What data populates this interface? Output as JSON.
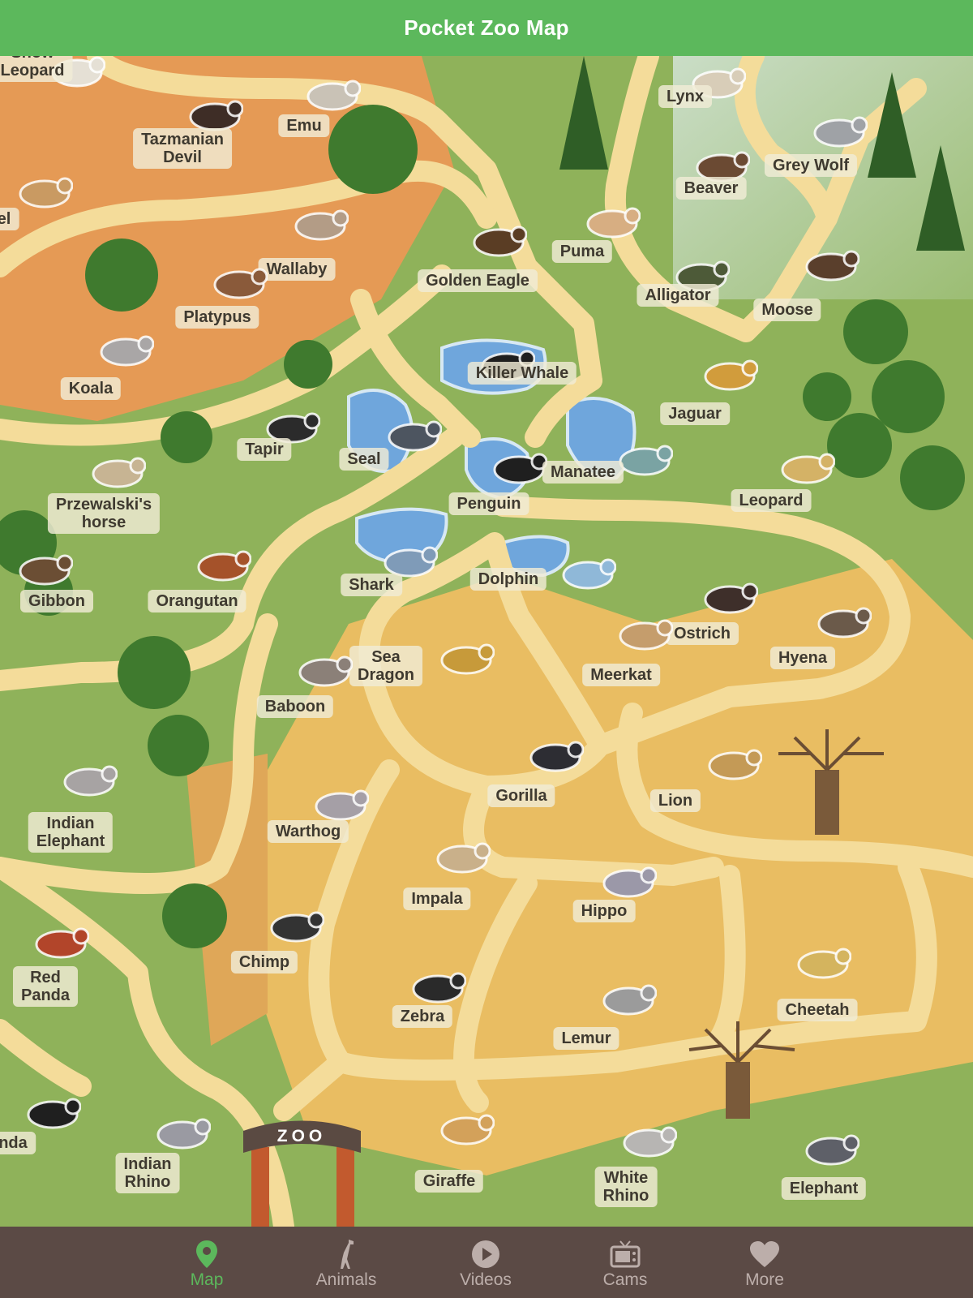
{
  "header": {
    "title": "Pocket Zoo Map"
  },
  "map": {
    "animals": [
      {
        "name": "Snow\nLeopard",
        "icon": "snow-leopard-icon"
      },
      {
        "name": "Emu",
        "icon": "emu-icon"
      },
      {
        "name": "Tazmanian\nDevil",
        "icon": "tasmanian-devil-icon"
      },
      {
        "name": "el",
        "icon": "camel-icon"
      },
      {
        "name": "Lynx",
        "icon": "lynx-icon"
      },
      {
        "name": "Grey Wolf",
        "icon": "grey-wolf-icon"
      },
      {
        "name": "Beaver",
        "icon": "beaver-icon"
      },
      {
        "name": "Wallaby",
        "icon": "wallaby-icon"
      },
      {
        "name": "Puma",
        "icon": "puma-icon"
      },
      {
        "name": "Golden Eagle",
        "icon": "golden-eagle-icon"
      },
      {
        "name": "Alligator",
        "icon": "alligator-icon"
      },
      {
        "name": "Moose",
        "icon": "moose-icon"
      },
      {
        "name": "Platypus",
        "icon": "platypus-icon"
      },
      {
        "name": "Koala",
        "icon": "koala-icon"
      },
      {
        "name": "Killer Whale",
        "icon": "killer-whale-icon"
      },
      {
        "name": "Jaguar",
        "icon": "jaguar-icon"
      },
      {
        "name": "Tapir",
        "icon": "tapir-icon"
      },
      {
        "name": "Seal",
        "icon": "seal-icon"
      },
      {
        "name": "Penguin",
        "icon": "penguin-icon"
      },
      {
        "name": "Manatee",
        "icon": "manatee-icon"
      },
      {
        "name": "Leopard",
        "icon": "leopard-icon"
      },
      {
        "name": "Przewalski's\nhorse",
        "icon": "przewalski-horse-icon"
      },
      {
        "name": "Shark",
        "icon": "shark-icon"
      },
      {
        "name": "Dolphin",
        "icon": "dolphin-icon"
      },
      {
        "name": "Gibbon",
        "icon": "gibbon-icon"
      },
      {
        "name": "Orangutan",
        "icon": "orangutan-icon"
      },
      {
        "name": "Ostrich",
        "icon": "ostrich-icon"
      },
      {
        "name": "Hyena",
        "icon": "hyena-icon"
      },
      {
        "name": "Sea\nDragon",
        "icon": "sea-dragon-icon"
      },
      {
        "name": "Meerkat",
        "icon": "meerkat-icon"
      },
      {
        "name": "Baboon",
        "icon": "baboon-icon"
      },
      {
        "name": "Gorilla",
        "icon": "gorilla-icon"
      },
      {
        "name": "Lion",
        "icon": "lion-icon"
      },
      {
        "name": "Indian\nElephant",
        "icon": "indian-elephant-icon"
      },
      {
        "name": "Warthog",
        "icon": "warthog-icon"
      },
      {
        "name": "Impala",
        "icon": "impala-icon"
      },
      {
        "name": "Hippo",
        "icon": "hippo-icon"
      },
      {
        "name": "Chimp",
        "icon": "chimp-icon"
      },
      {
        "name": "Red\nPanda",
        "icon": "red-panda-icon"
      },
      {
        "name": "Zebra",
        "icon": "zebra-icon"
      },
      {
        "name": "Lemur",
        "icon": "lemur-icon"
      },
      {
        "name": "Cheetah",
        "icon": "cheetah-icon"
      },
      {
        "name": "nda",
        "icon": "giant-panda-icon"
      },
      {
        "name": "Indian\nRhino",
        "icon": "indian-rhino-icon"
      },
      {
        "name": "Giraffe",
        "icon": "giraffe-icon"
      },
      {
        "name": "White\nRhino",
        "icon": "white-rhino-icon"
      },
      {
        "name": "Elephant",
        "icon": "elephant-icon"
      }
    ],
    "gate": {
      "sign": "ZOO"
    }
  },
  "tabbar": {
    "tabs": [
      {
        "label": "Map",
        "icon": "map-pin-icon",
        "active": true
      },
      {
        "label": "Animals",
        "icon": "giraffe-icon",
        "active": false
      },
      {
        "label": "Videos",
        "icon": "play-icon",
        "active": false
      },
      {
        "label": "Cams",
        "icon": "tv-icon",
        "active": false
      },
      {
        "label": "More",
        "icon": "heart-icon",
        "active": false
      }
    ]
  },
  "colors": {
    "header": "#5cb85c",
    "tabbar": "#5b4a45",
    "active_tab": "#5cb85c",
    "inactive_tab": "#bcaeaa",
    "path": "#f4dc9a",
    "grass": "#8fb25a",
    "desert": "#e8a055",
    "savanna": "#ecc060",
    "water": "#6fa6dc"
  }
}
